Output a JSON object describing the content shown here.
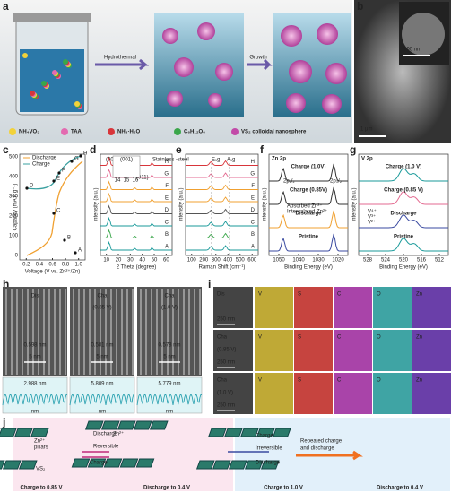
{
  "panels": {
    "a": {
      "label": "a",
      "steps": [
        "Hydrothermal",
        "Growth"
      ],
      "legend": [
        "NH₄VO₃",
        "TAA",
        "NH₃·H₂O",
        "C₆H₁₂O₆",
        "VS₂ colloidal nanosphere"
      ]
    },
    "b": {
      "label": "b",
      "scales": [
        "200 nm",
        "1 μm"
      ]
    },
    "c": {
      "label": "c",
      "legend": [
        "Discharge",
        "Charge"
      ],
      "ylabel": "Capacity (mA h g⁻¹)",
      "xlabel": "Voltage (V vs. Zn²⁺/Zn)",
      "yticks": [
        "0",
        "100",
        "200",
        "300",
        "400",
        "500"
      ],
      "xticks": [
        "0.2",
        "0.4",
        "0.6",
        "0.8",
        "1.0"
      ],
      "points": [
        "A",
        "B",
        "C",
        "D",
        "E",
        "F",
        "G",
        "H"
      ]
    },
    "d": {
      "label": "d",
      "ylabel": "Intensity (a.u.)",
      "xlabel": "2 Theta (degree)",
      "xticks": [
        "10",
        "20",
        "30",
        "40",
        "50",
        "60"
      ],
      "annotations": [
        "(001)",
        "(001)",
        "(011)",
        "Stainless -steel"
      ],
      "inset_ticks": [
        "14",
        "15",
        "16"
      ],
      "traces": [
        "A",
        "B",
        "C",
        "D",
        "E",
        "F",
        "G",
        "H"
      ]
    },
    "e": {
      "label": "e",
      "ylabel": "Intensity (a.u.)",
      "xlabel": "Raman Shift (cm⁻¹)",
      "xticks": [
        "100",
        "200",
        "300",
        "400",
        "500",
        "600"
      ],
      "peaks": [
        "E₁g",
        "A₁g"
      ],
      "traces": [
        "A",
        "B",
        "C",
        "D",
        "E",
        "F",
        "G",
        "H"
      ]
    },
    "f": {
      "label": "f",
      "title": "Zn 2p",
      "ylabel": "Intensity (a.u.)",
      "xlabel": "Binding Energy (eV)",
      "xticks": [
        "1050",
        "1040",
        "1030",
        "1020"
      ],
      "states": [
        "Charge (1.0V)",
        "Charge (0.85V)",
        "Discharge",
        "Pristine"
      ],
      "peaks": [
        "2p₁/₂",
        "2p₃/₂"
      ],
      "legend": [
        "Absorbed Zn²⁺",
        "Intercalated Zn²⁺"
      ]
    },
    "g": {
      "label": "g",
      "title": "V 2p",
      "ylabel": "Intensity (a.u.)",
      "xlabel": "Binding Energy (eV)",
      "xticks": [
        "528",
        "524",
        "520",
        "516",
        "512"
      ],
      "states": [
        "Charge (1.0 V)",
        "Charge (0.85 V)",
        "Discharge",
        "Pristine"
      ],
      "legend": [
        "V⁴⁺",
        "V³⁺",
        "V²⁺"
      ]
    },
    "h": {
      "label": "h",
      "states": [
        "Dis",
        "Cha",
        "Cha"
      ],
      "substates": [
        "(0.85 V)",
        "(1.0 V)"
      ],
      "spacings": [
        "0.598 nm",
        "0.581 nm",
        "0.578 nm"
      ],
      "scale": "5 nm",
      "profiles": [
        "2.988 nm",
        "5.809 nm",
        "5.779 nm"
      ],
      "unit": "nm"
    },
    "i": {
      "label": "i",
      "states": [
        "Dis",
        "Cha",
        "Cha"
      ],
      "substates": [
        "(0.85 V)",
        "(1.0 V)"
      ],
      "scale": "250 nm",
      "elements": [
        "V",
        "S",
        "C",
        "O",
        "Zn"
      ]
    },
    "j": {
      "label": "j",
      "texts": [
        "Zn²⁺",
        "pillars",
        "VS₂",
        "Discharge",
        "Reversible",
        "Charge",
        "Zn²⁺",
        "Charge",
        "Irreversible",
        "Discharge",
        "Repeated charge",
        "and discharge"
      ],
      "captions": [
        "Charge to 0.85 V",
        "Discharge to 0.4 V",
        "Charge to 1.0 V",
        "Discharge to 0.4 V"
      ]
    }
  }
}
